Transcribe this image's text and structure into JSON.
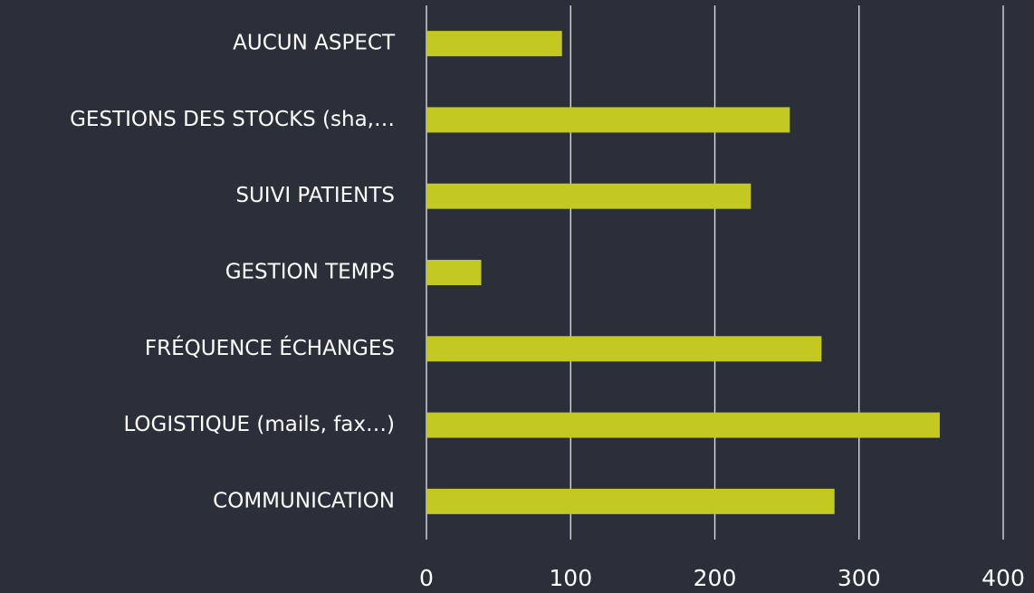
{
  "chart_data": {
    "type": "bar",
    "orientation": "horizontal",
    "categories": [
      "AUCUN ASPECT",
      "GESTIONS DES STOCKS (sha,…",
      "SUIVI PATIENTS",
      "GESTION TEMPS",
      "FRÉQUENCE ÉCHANGES",
      "LOGISTIQUE (mails, fax…)",
      "COMMUNICATION"
    ],
    "values": [
      94,
      252,
      225,
      38,
      274,
      356,
      283
    ],
    "color": "#c4c922",
    "xlim": [
      0,
      400
    ],
    "xticks": [
      0,
      100,
      200,
      300,
      400
    ],
    "grid": true
  }
}
